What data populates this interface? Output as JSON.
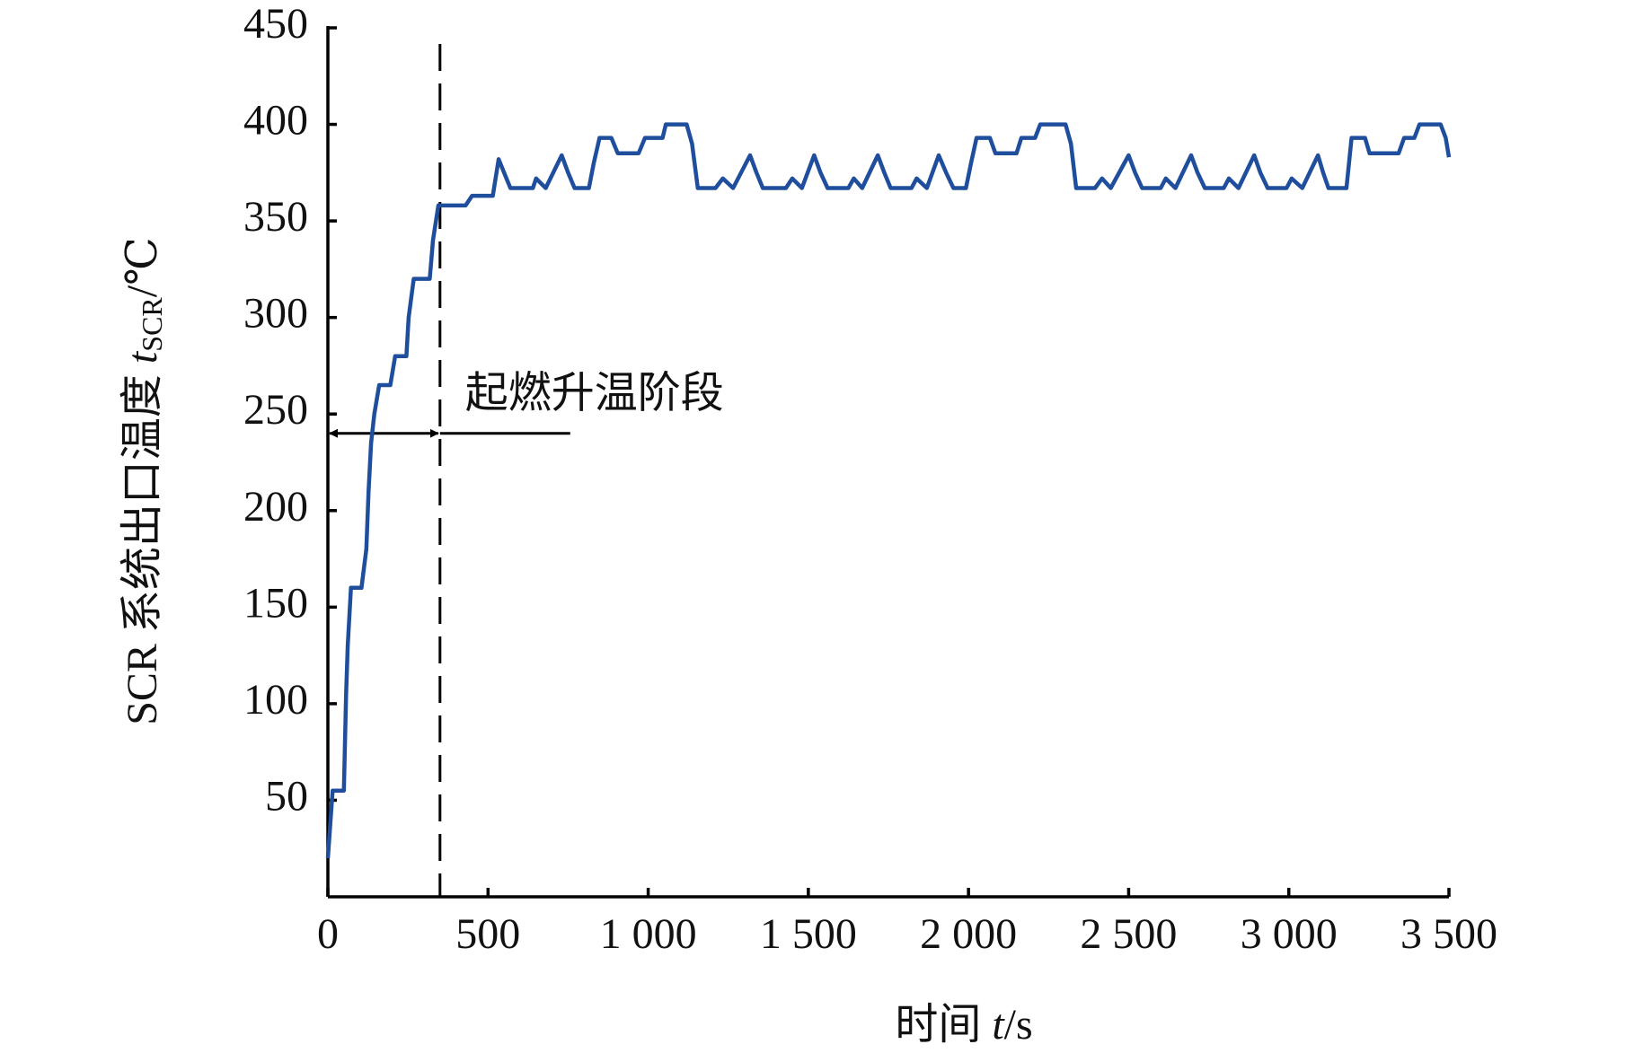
{
  "chart_data": {
    "type": "line",
    "y_label": {
      "text": "SCR 系统出口温度 ",
      "var": "t",
      "sub": "SCR",
      "unit": "/℃"
    },
    "x_label": {
      "text": "时间 ",
      "var": "t",
      "unit": "/s"
    },
    "x": [
      0,
      15,
      50,
      57,
      62,
      72,
      105,
      120,
      127,
      135,
      145,
      160,
      195,
      210,
      245,
      252,
      268,
      318,
      328,
      345,
      430,
      450,
      515,
      533,
      555,
      570,
      640,
      650,
      680,
      730,
      750,
      770,
      815,
      830,
      848,
      885,
      905,
      970,
      990,
      1045,
      1055,
      1120,
      1137,
      1155,
      1210,
      1233,
      1265,
      1318,
      1338,
      1358,
      1430,
      1450,
      1480,
      1518,
      1538,
      1560,
      1625,
      1642,
      1668,
      1717,
      1737,
      1757,
      1822,
      1838,
      1870,
      1907,
      1930,
      1953,
      1992,
      2008,
      2025,
      2067,
      2084,
      2150,
      2165,
      2208,
      2224,
      2303,
      2320,
      2336,
      2395,
      2417,
      2444,
      2500,
      2520,
      2542,
      2600,
      2616,
      2646,
      2695,
      2715,
      2738,
      2797,
      2813,
      2843,
      2892,
      2911,
      2934,
      2993,
      3009,
      3042,
      3091,
      3107,
      3124,
      3180,
      3196,
      3238,
      3252,
      3343,
      3360,
      3392,
      3408,
      3474,
      3490,
      3500
    ],
    "series": [
      {
        "color": "#1f4e9c",
        "values": [
          20,
          55,
          55,
          105,
          130,
          160,
          160,
          180,
          210,
          235,
          250,
          265,
          265,
          280,
          280,
          300,
          320,
          320,
          340,
          358,
          358,
          363,
          363,
          382,
          373,
          367,
          367,
          372,
          367,
          384,
          375,
          367,
          367,
          380,
          393,
          393,
          385,
          385,
          393,
          393,
          400,
          400,
          390,
          367,
          367,
          372,
          367,
          384,
          375,
          367,
          367,
          372,
          367,
          384,
          375,
          367,
          367,
          372,
          367,
          384,
          375,
          367,
          367,
          372,
          367,
          384,
          375,
          367,
          367,
          380,
          393,
          393,
          385,
          385,
          393,
          393,
          400,
          400,
          390,
          367,
          367,
          372,
          367,
          384,
          375,
          367,
          367,
          372,
          367,
          384,
          375,
          367,
          367,
          372,
          367,
          384,
          375,
          367,
          367,
          372,
          367,
          384,
          375,
          367,
          367,
          393,
          393,
          385,
          385,
          393,
          393,
          400,
          400,
          393,
          383
        ]
      }
    ],
    "xlim": [
      0,
      3500
    ],
    "xticks": [
      0,
      500,
      {
        "value": 1000,
        "label": "1 000"
      },
      {
        "value": 1500,
        "label": "1 500"
      },
      {
        "value": 2000,
        "label": "2 000"
      },
      {
        "value": 2500,
        "label": "2 500"
      },
      {
        "value": 3000,
        "label": "3 000"
      },
      {
        "value": 3500,
        "label": "3 500"
      }
    ],
    "ylim": [
      0,
      450
    ],
    "yticks": [
      50,
      100,
      150,
      200,
      250,
      300,
      350,
      400,
      450
    ],
    "annotation": {
      "text": "起燃升温阶段",
      "x_start": 0,
      "x_end": 350,
      "y": 240
    }
  }
}
